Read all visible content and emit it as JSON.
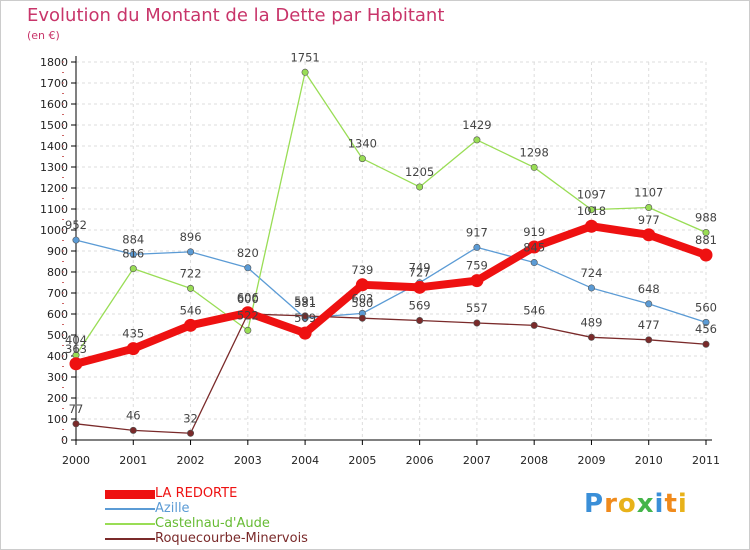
{
  "title": "Evolution du Montant de la Dette par Habitant",
  "subtitle": "(en €)",
  "logo_text": "Proxiti",
  "logo_letter_colors": [
    "#3a8fd8",
    "#f08a1c",
    "#e8b21a",
    "#44b54a",
    "#3a8fd8",
    "#f08a1c",
    "#e8b21a"
  ],
  "chart_data": {
    "type": "line",
    "title": "Evolution du Montant de la Dette par Habitant",
    "subtitle": "(en €)",
    "xlabel": "",
    "ylabel": "",
    "x": [
      "2000",
      "2001",
      "2002",
      "2003",
      "2004",
      "2005",
      "2006",
      "2007",
      "2008",
      "2009",
      "2010",
      "2011"
    ],
    "ylim": [
      0,
      1800
    ],
    "yticks": [
      0,
      100,
      200,
      300,
      400,
      500,
      600,
      700,
      800,
      900,
      1000,
      1100,
      1200,
      1300,
      1400,
      1500,
      1600,
      1700,
      1800
    ],
    "grid": true,
    "legend_position": "bottom-left",
    "series": [
      {
        "name": "LA REDORTE",
        "color": "#ee1111",
        "emphasis": true,
        "values": [
          363,
          435,
          546,
          606,
          509,
          739,
          727,
          759,
          919,
          1018,
          977,
          881
        ],
        "labels": [
          "363",
          "435",
          "546",
          "606",
          "509",
          "739",
          "727",
          "759",
          "919",
          "1018",
          "977",
          "881"
        ]
      },
      {
        "name": "Azille",
        "color": "#5b9bd5",
        "emphasis": false,
        "values": [
          952,
          884,
          896,
          820,
          581,
          603,
          749,
          917,
          845,
          724,
          648,
          560
        ],
        "labels": [
          "952",
          "884",
          "896",
          "820",
          "581",
          "603",
          "749",
          "917",
          "845",
          "724",
          "648",
          "560"
        ]
      },
      {
        "name": "Castelnau-d'Aude",
        "color": "#99dd55",
        "emphasis": false,
        "values": [
          404,
          816,
          722,
          522,
          1751,
          1340,
          1205,
          1429,
          1298,
          1097,
          1107,
          988
        ],
        "labels": [
          "404",
          "816",
          "722",
          "522",
          "1751",
          "1340",
          "1205",
          "1429",
          "1298",
          "1097",
          "1107",
          "988"
        ]
      },
      {
        "name": "Roquecourbe-Minervois",
        "color": "#7a2a2a",
        "emphasis": false,
        "values": [
          77,
          46,
          32,
          600,
          591,
          580,
          569,
          557,
          546,
          489,
          477,
          456
        ],
        "labels": [
          "77",
          "46",
          "32",
          "600",
          "591",
          "580",
          "569",
          "557",
          "546",
          "489",
          "477",
          "456"
        ]
      }
    ]
  }
}
